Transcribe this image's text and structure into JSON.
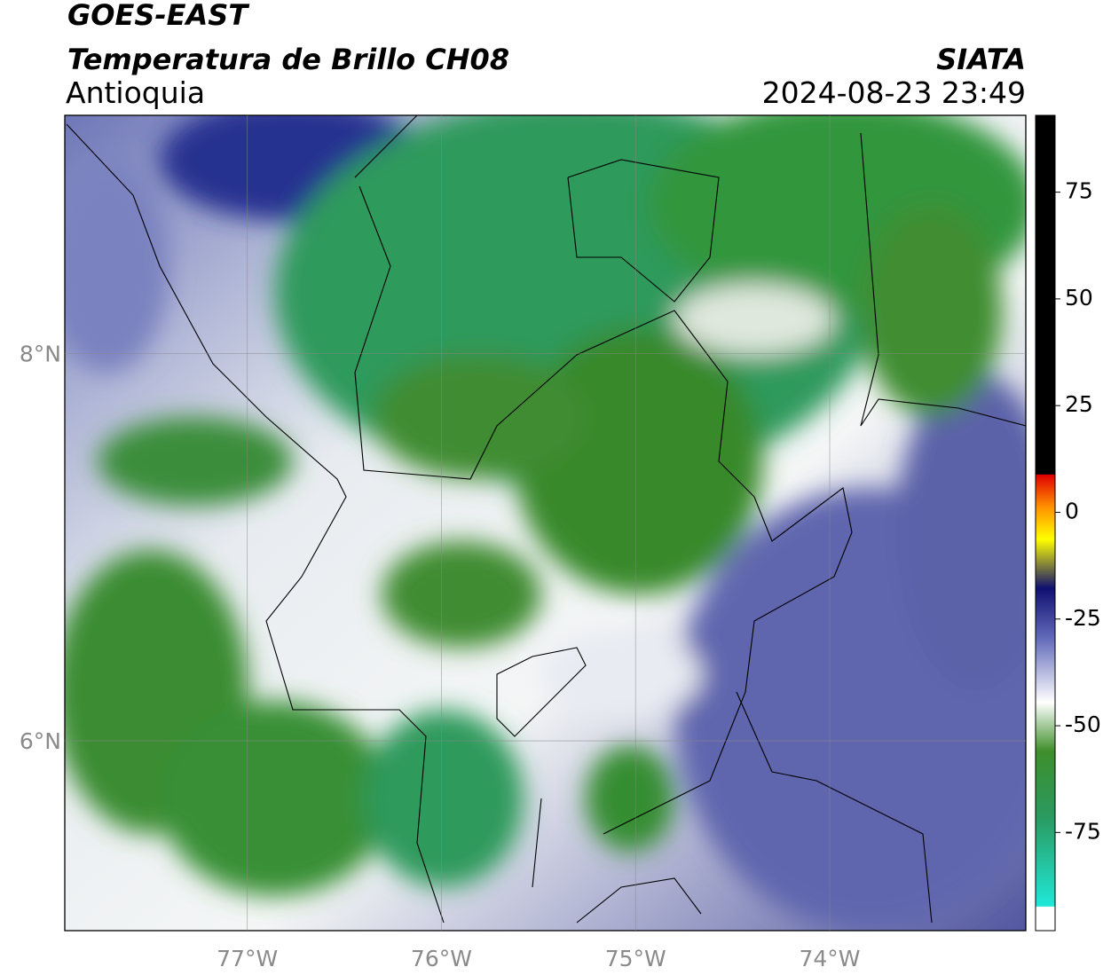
{
  "header": {
    "title": "GOES-EAST",
    "subtitle": "Temperatura de Brillo CH08",
    "region": "Antioquia",
    "source": "SIATA",
    "datetime": "2024-08-23 23:49"
  },
  "map": {
    "lonlim": [
      -77.94,
      -72.99
    ],
    "latlim": [
      5.02,
      9.23
    ],
    "lon_ticks": [
      {
        "value": -77,
        "label": "77°W"
      },
      {
        "value": -76,
        "label": "76°W"
      },
      {
        "value": -75,
        "label": "75°W"
      },
      {
        "value": -74,
        "label": "74°W"
      }
    ],
    "lat_ticks": [
      {
        "value": 8,
        "label": "8°N"
      },
      {
        "value": 6,
        "label": "6°N"
      }
    ]
  },
  "colorbar": {
    "lim": [
      -98,
      93
    ],
    "ticks": [
      75,
      50,
      25,
      0,
      -25,
      -50,
      -75
    ]
  }
}
